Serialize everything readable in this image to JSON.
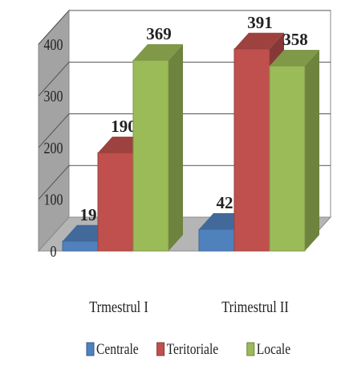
{
  "chart_data": {
    "type": "bar",
    "style": "3d-clustered-column",
    "categories": [
      "Trmestrul I",
      "Trimestrul II"
    ],
    "series": [
      {
        "name": "Centrale",
        "values": [
          19,
          42
        ],
        "color": "#4F81BD"
      },
      {
        "name": "Teritoriale",
        "values": [
          190,
          391
        ],
        "color": "#C0504D"
      },
      {
        "name": "Locale",
        "values": [
          369,
          358
        ],
        "color": "#9BBB59"
      }
    ],
    "yticks": [
      0,
      100,
      200,
      300,
      400
    ],
    "ylim": [
      0,
      400
    ],
    "grid": true,
    "legend": "bottom",
    "data_labels": true
  }
}
